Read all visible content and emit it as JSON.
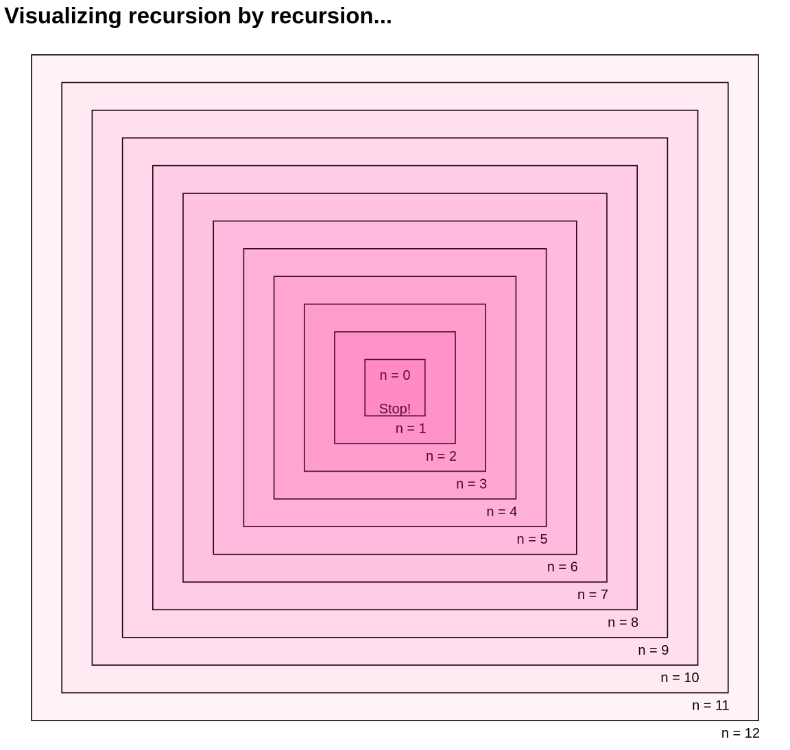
{
  "title": "Visualizing recursion by recursion...",
  "diagram": {
    "levels": [
      {
        "n": 0,
        "label": "n = 0",
        "note": "Stop!"
      },
      {
        "n": 1,
        "label": "n = 1"
      },
      {
        "n": 2,
        "label": "n = 2"
      },
      {
        "n": 3,
        "label": "n = 3"
      },
      {
        "n": 4,
        "label": "n = 4"
      },
      {
        "n": 5,
        "label": "n = 5"
      },
      {
        "n": 6,
        "label": "n = 6"
      },
      {
        "n": 7,
        "label": "n = 7"
      },
      {
        "n": 8,
        "label": "n = 8"
      },
      {
        "n": 9,
        "label": "n = 9"
      },
      {
        "n": 10,
        "label": "n = 10"
      },
      {
        "n": 11,
        "label": "n = 11"
      },
      {
        "n": 12,
        "label": "n = 12"
      }
    ],
    "colors": {
      "inner_fill": "#FF80BF",
      "outer_fill": "#FFF2F8",
      "inner_stroke": "#5A0A35",
      "outer_stroke": "#000000"
    }
  }
}
